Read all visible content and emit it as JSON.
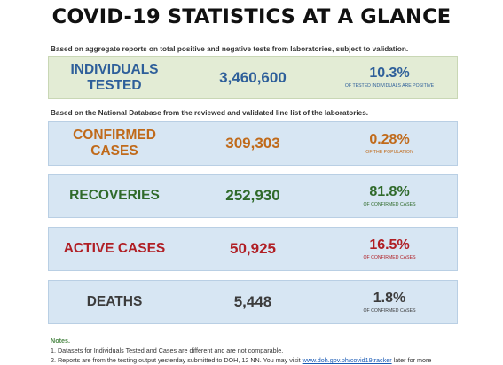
{
  "title": "COVID-19 STATISTICS AT A GLANCE",
  "note_top": "Based on aggregate reports on total positive and negative tests from laboratories, subject to validation.",
  "note_mid": "Based on the National Database from the reviewed and validated line list of the laboratories.",
  "stats": {
    "tested": {
      "label": "INDIVIDUALS TESTED",
      "value": "3,460,600",
      "percent": "10.3%",
      "percent_desc": "OF TESTED INDIVIDUALS ARE POSITIVE",
      "color": "#2e5f9a"
    },
    "confirmed": {
      "label": "CONFIRMED CASES",
      "value": "309,303",
      "percent": "0.28%",
      "percent_desc": "OF THE POPULATION",
      "color": "#c06a1a"
    },
    "recoveries": {
      "label": "RECOVERIES",
      "value": "252,930",
      "percent": "81.8%",
      "percent_desc": "OF CONFIRMED CASES",
      "color": "#2f6a2a"
    },
    "active": {
      "label": "ACTIVE CASES",
      "value": "50,925",
      "percent": "16.5%",
      "percent_desc": "OF CONFIRMED CASES",
      "color": "#b01e24"
    },
    "deaths": {
      "label": "DEATHS",
      "value": "5,448",
      "percent": "1.8%",
      "percent_desc": "OF CONFIRMED CASES",
      "color": "#3c3c3c"
    }
  },
  "notes": {
    "heading": "Notes.",
    "line1": "1. Datasets for Individuals Tested and Cases are different and are not comparable.",
    "line2_pre": "2. Reports are from the testing output yesterday submitted to DOH, 12 NN. You may visit ",
    "line2_link": "www.doh.gov.ph/covid19tracker",
    "line2_post": " later for more"
  }
}
